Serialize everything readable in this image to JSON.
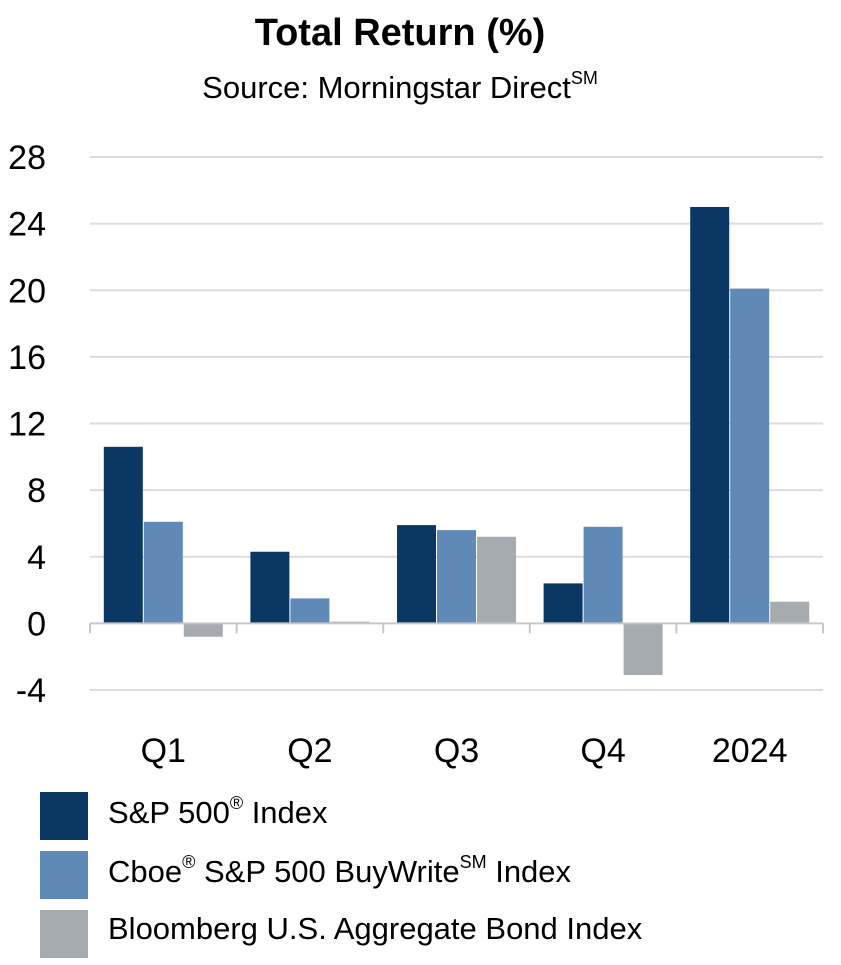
{
  "chart_data": {
    "type": "bar",
    "title": "Total Return (%)",
    "subtitle": "Source: Morningstar Direct",
    "subtitle_superscript": "SM",
    "categories": [
      "Q1",
      "Q2",
      "Q3",
      "Q4",
      "2024"
    ],
    "series": [
      {
        "name": "S&P 500® Index",
        "color": "#0a3764",
        "values": [
          10.6,
          4.3,
          5.9,
          2.4,
          25.0
        ]
      },
      {
        "name": "Cboe® S&P 500 BuyWrite℠ Index",
        "color": "#5f8ab7",
        "values": [
          6.1,
          1.5,
          5.6,
          5.8,
          20.1
        ]
      },
      {
        "name": "Bloomberg U.S. Aggregate Bond Index",
        "color": "#a6abb0",
        "values": [
          -0.8,
          0.1,
          5.2,
          -3.1,
          1.3
        ]
      }
    ],
    "ylim": [
      -4,
      28
    ],
    "yticks": [
      -4,
      0,
      4,
      8,
      12,
      16,
      20,
      24,
      28
    ],
    "xlabel": "",
    "ylabel": "",
    "grid": true,
    "legend_position": "bottom-left"
  },
  "legend": {
    "items": [
      {
        "main": "S&P 500",
        "sup": "®",
        "rest": " Index"
      },
      {
        "main": "Cboe",
        "sup": "®",
        "rest": " S&P 500 BuyWrite",
        "sup2": "SM",
        "rest2": " Index"
      },
      {
        "main": "Bloomberg U.S. Aggregate Bond Index",
        "sup": "",
        "rest": ""
      }
    ]
  }
}
